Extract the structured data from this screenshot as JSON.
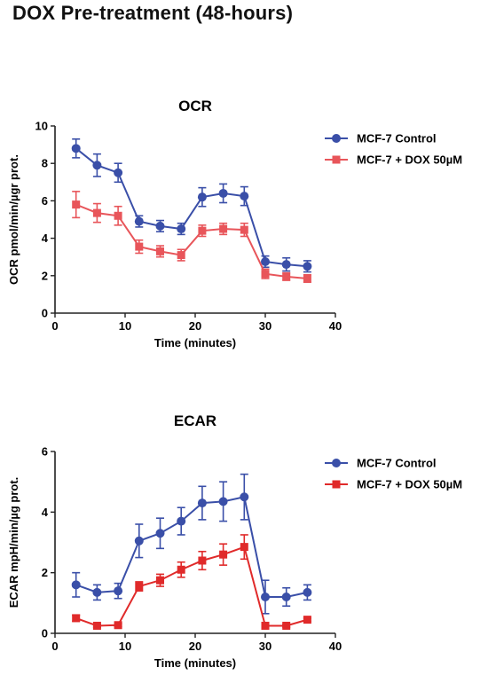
{
  "page": {
    "title": "DOX Pre-treatment (48-hours)"
  },
  "chart_data": [
    {
      "type": "line",
      "title": "OCR",
      "xlabel": "Time (minutes)",
      "ylabel": "OCR pmol/min/µgr prot.",
      "xlim": [
        0,
        40
      ],
      "ylim": [
        0,
        10
      ],
      "xticks": [
        0,
        10,
        20,
        30,
        40
      ],
      "yticks": [
        0,
        2,
        4,
        6,
        8,
        10
      ],
      "grid": false,
      "legend_position": "top-right",
      "x": [
        3,
        6,
        9,
        12,
        15,
        18,
        21,
        24,
        27,
        30,
        33,
        36
      ],
      "series": [
        {
          "name": "MCF-7 Control",
          "color": "#3a4fa8",
          "marker": "circle",
          "values": [
            8.8,
            7.9,
            7.5,
            4.9,
            4.65,
            4.5,
            6.2,
            6.4,
            6.25,
            2.75,
            2.6,
            2.5
          ],
          "errors": [
            0.5,
            0.6,
            0.5,
            0.3,
            0.3,
            0.3,
            0.5,
            0.5,
            0.5,
            0.3,
            0.35,
            0.3
          ]
        },
        {
          "name": "MCF-7 + DOX 50µM",
          "color": "#e8555a",
          "marker": "square",
          "values": [
            5.8,
            5.35,
            5.2,
            3.55,
            3.3,
            3.1,
            4.4,
            4.5,
            4.45,
            2.1,
            1.95,
            1.85
          ],
          "errors": [
            0.7,
            0.5,
            0.5,
            0.35,
            0.3,
            0.3,
            0.3,
            0.3,
            0.35,
            0.25,
            0.2,
            0.2
          ]
        }
      ]
    },
    {
      "type": "line",
      "title": "ECAR",
      "xlabel": "Time (minutes)",
      "ylabel": "ECAR mpH/min/µg prot.",
      "xlim": [
        0,
        40
      ],
      "ylim": [
        0,
        6
      ],
      "xticks": [
        0,
        10,
        20,
        30,
        40
      ],
      "yticks": [
        0,
        2,
        4,
        6
      ],
      "grid": false,
      "legend_position": "top-right",
      "x": [
        3,
        6,
        9,
        12,
        15,
        18,
        21,
        24,
        27,
        30,
        33,
        36
      ],
      "series": [
        {
          "name": "MCF-7 Control",
          "color": "#3a4fa8",
          "marker": "circle",
          "values": [
            1.6,
            1.35,
            1.4,
            3.05,
            3.3,
            3.7,
            4.3,
            4.35,
            4.5,
            1.2,
            1.2,
            1.35
          ],
          "errors": [
            0.4,
            0.25,
            0.25,
            0.55,
            0.5,
            0.45,
            0.55,
            0.65,
            0.75,
            0.55,
            0.3,
            0.25
          ]
        },
        {
          "name": "MCF-7 + DOX 50µM",
          "color": "#e02a2a",
          "marker": "square",
          "values": [
            0.5,
            0.25,
            0.27,
            1.55,
            1.75,
            2.1,
            2.4,
            2.6,
            2.85,
            0.25,
            0.25,
            0.45
          ],
          "errors": [
            0.1,
            0.05,
            0.05,
            0.15,
            0.2,
            0.25,
            0.3,
            0.35,
            0.4,
            0.1,
            0.05,
            0.05
          ]
        }
      ]
    }
  ]
}
